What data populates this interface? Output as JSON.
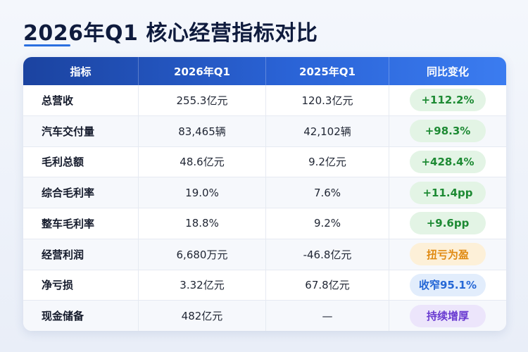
{
  "title": "2026年Q1 核心经营指标对比",
  "table": {
    "headers": [
      "指标",
      "2026年Q1",
      "2025年Q1",
      "同比变化"
    ],
    "rows": [
      {
        "metric": "总营收",
        "q1_2026": "255.3亿元",
        "q1_2025": "120.3亿元",
        "change": "+112.2%",
        "badge_color": "green"
      },
      {
        "metric": "汽车交付量",
        "q1_2026": "83,465辆",
        "q1_2025": "42,102辆",
        "change": "+98.3%",
        "badge_color": "green"
      },
      {
        "metric": "毛利总额",
        "q1_2026": "48.6亿元",
        "q1_2025": "9.2亿元",
        "change": "+428.4%",
        "badge_color": "green"
      },
      {
        "metric": "综合毛利率",
        "q1_2026": "19.0%",
        "q1_2025": "7.6%",
        "change": "+11.4pp",
        "badge_color": "green"
      },
      {
        "metric": "整车毛利率",
        "q1_2026": "18.8%",
        "q1_2025": "9.2%",
        "change": "+9.6pp",
        "badge_color": "green"
      },
      {
        "metric": "经营利润",
        "q1_2026": "6,680万元",
        "q1_2025": "-46.8亿元",
        "change": "扭亏为盈",
        "badge_color": "orange"
      },
      {
        "metric": "净亏损",
        "q1_2026": "3.32亿元",
        "q1_2025": "67.8亿元",
        "change": "收窄95.1%",
        "badge_color": "blue"
      },
      {
        "metric": "现金储备",
        "q1_2026": "482亿元",
        "q1_2025": "—",
        "change": "持续增厚",
        "badge_color": "purple"
      }
    ]
  }
}
